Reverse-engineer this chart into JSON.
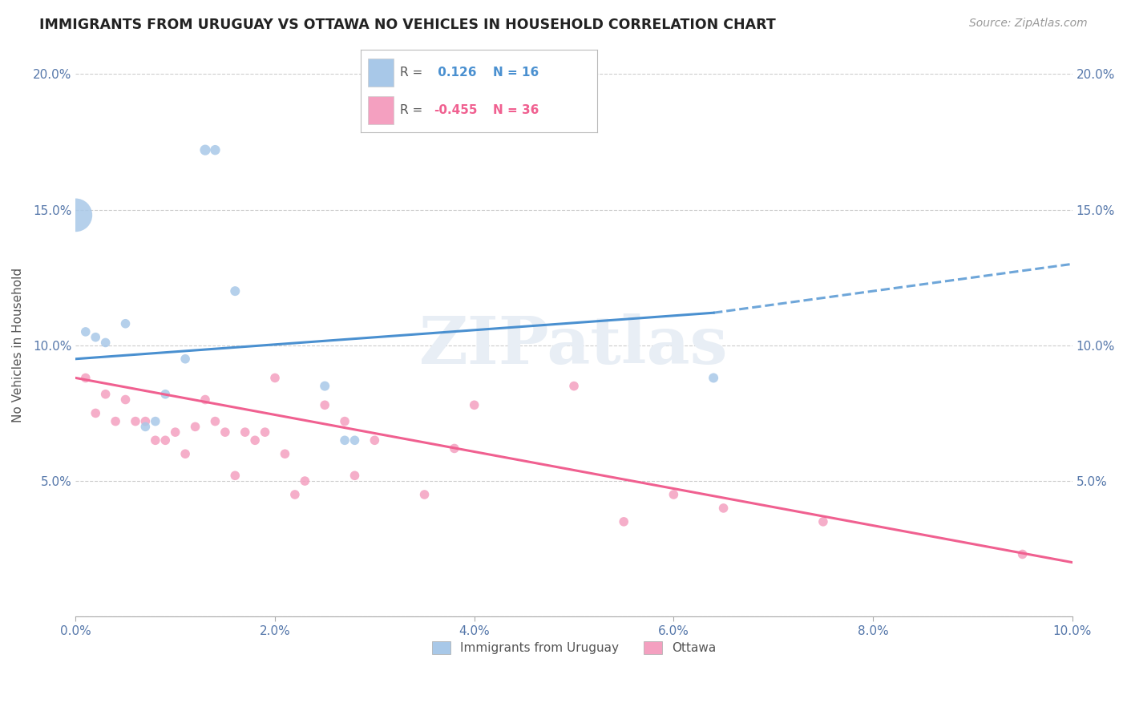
{
  "title": "IMMIGRANTS FROM URUGUAY VS OTTAWA NO VEHICLES IN HOUSEHOLD CORRELATION CHART",
  "source": "Source: ZipAtlas.com",
  "ylabel": "No Vehicles in Household",
  "xlim": [
    0.0,
    0.1
  ],
  "ylim": [
    0.0,
    0.2
  ],
  "legend_blue_r": " 0.126",
  "legend_blue_n": "16",
  "legend_pink_r": "-0.455",
  "legend_pink_n": "36",
  "legend_blue_label": "Immigrants from Uruguay",
  "legend_pink_label": "Ottawa",
  "blue_color": "#a8c8e8",
  "pink_color": "#f4a0c0",
  "blue_line_color": "#4a90d0",
  "pink_line_color": "#f06090",
  "watermark": "ZIPatlas",
  "blue_scatter_x": [
    0.0,
    0.002,
    0.003,
    0.005,
    0.007,
    0.008,
    0.009,
    0.011,
    0.013,
    0.014,
    0.016,
    0.025,
    0.027,
    0.028,
    0.064,
    0.001
  ],
  "blue_scatter_y": [
    0.148,
    0.103,
    0.101,
    0.108,
    0.07,
    0.072,
    0.082,
    0.095,
    0.172,
    0.172,
    0.12,
    0.085,
    0.065,
    0.065,
    0.088,
    0.105
  ],
  "blue_scatter_sizes": [
    900,
    70,
    70,
    70,
    70,
    70,
    70,
    70,
    90,
    80,
    75,
    75,
    70,
    70,
    75,
    70
  ],
  "pink_scatter_x": [
    0.001,
    0.002,
    0.003,
    0.004,
    0.005,
    0.006,
    0.007,
    0.008,
    0.009,
    0.01,
    0.011,
    0.012,
    0.013,
    0.014,
    0.015,
    0.016,
    0.017,
    0.018,
    0.019,
    0.02,
    0.021,
    0.022,
    0.023,
    0.025,
    0.027,
    0.028,
    0.03,
    0.035,
    0.038,
    0.04,
    0.05,
    0.055,
    0.06,
    0.065,
    0.075,
    0.095
  ],
  "pink_scatter_y": [
    0.088,
    0.075,
    0.082,
    0.072,
    0.08,
    0.072,
    0.072,
    0.065,
    0.065,
    0.068,
    0.06,
    0.07,
    0.08,
    0.072,
    0.068,
    0.052,
    0.068,
    0.065,
    0.068,
    0.088,
    0.06,
    0.045,
    0.05,
    0.078,
    0.072,
    0.052,
    0.065,
    0.045,
    0.062,
    0.078,
    0.085,
    0.035,
    0.045,
    0.04,
    0.035,
    0.023
  ],
  "pink_scatter_sizes": [
    70,
    70,
    70,
    70,
    70,
    70,
    70,
    70,
    70,
    70,
    70,
    70,
    70,
    70,
    70,
    70,
    70,
    70,
    70,
    70,
    70,
    70,
    70,
    70,
    70,
    70,
    70,
    70,
    70,
    70,
    70,
    70,
    70,
    70,
    70,
    70
  ],
  "blue_line_x0": 0.0,
  "blue_line_y0": 0.095,
  "blue_line_x1": 0.064,
  "blue_line_y1": 0.112,
  "blue_line_dash_x0": 0.064,
  "blue_line_dash_y0": 0.112,
  "blue_line_dash_x1": 0.1,
  "blue_line_dash_y1": 0.13,
  "pink_line_x0": 0.0,
  "pink_line_y0": 0.088,
  "pink_line_x1": 0.1,
  "pink_line_y1": 0.02
}
